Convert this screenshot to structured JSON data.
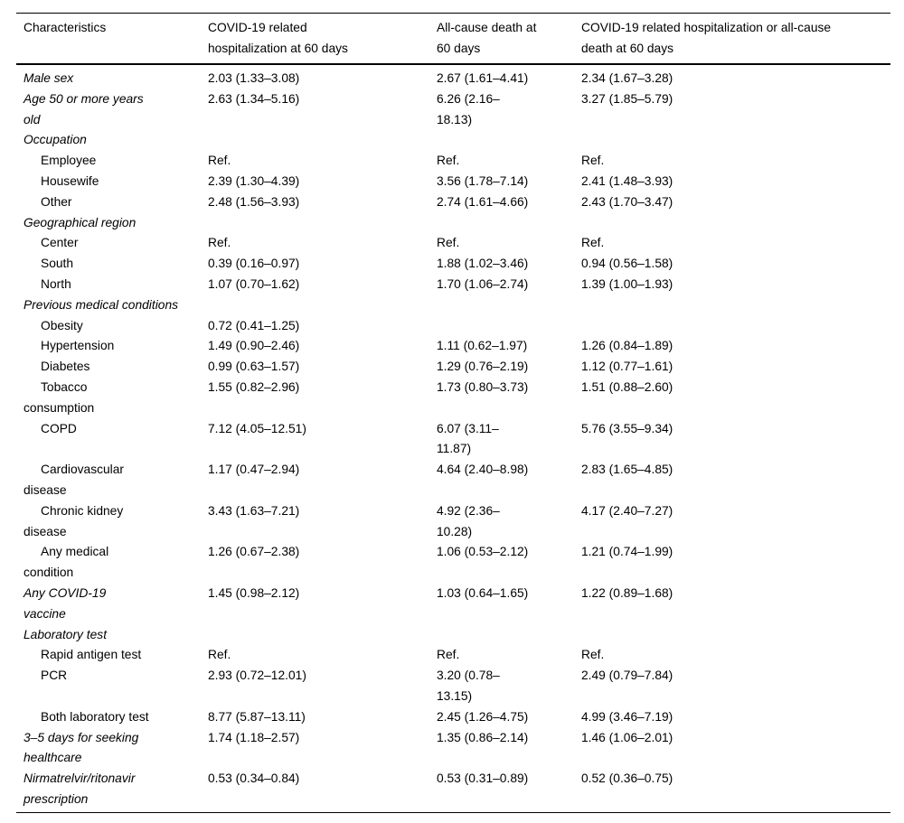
{
  "colors": {
    "background": "#ffffff",
    "text": "#000000",
    "rule": "#000000"
  },
  "table": {
    "columns": [
      "Characteristics",
      "COVID-19 related\nhospitalization at 60 days",
      "All-cause death at\n60 days",
      "COVID-19 related hospitalization or all-cause\ndeath at 60 days"
    ],
    "rows": [
      {
        "label": "Male sex",
        "style": "italic",
        "values": [
          "2.03 (1.33–3.08)",
          "2.67 (1.61–4.41)",
          "2.34 (1.67–3.28)"
        ]
      },
      {
        "label": "Age 50 or more years\nold",
        "style": "italic",
        "values": [
          "2.63 (1.34–5.16)",
          "6.26 (2.16–\n18.13)",
          "3.27 (1.85–5.79)"
        ]
      },
      {
        "label": "Occupation",
        "style": "italic",
        "values": [
          "",
          "",
          ""
        ]
      },
      {
        "label": "Employee",
        "style": "sub",
        "values": [
          "Ref.",
          "Ref.",
          "Ref."
        ]
      },
      {
        "label": "Housewife",
        "style": "sub",
        "values": [
          "2.39 (1.30–4.39)",
          "3.56 (1.78–7.14)",
          "2.41 (1.48–3.93)"
        ]
      },
      {
        "label": "Other",
        "style": "sub",
        "values": [
          "2.48 (1.56–3.93)",
          "2.74 (1.61–4.66)",
          "2.43 (1.70–3.47)"
        ]
      },
      {
        "label": "Geographical region",
        "style": "italic",
        "values": [
          "",
          "",
          ""
        ]
      },
      {
        "label": "Center",
        "style": "sub",
        "values": [
          "Ref.",
          "Ref.",
          "Ref."
        ]
      },
      {
        "label": "South",
        "style": "sub",
        "values": [
          "0.39 (0.16–0.97)",
          "1.88 (1.02–3.46)",
          "0.94 (0.56–1.58)"
        ]
      },
      {
        "label": "North",
        "style": "sub",
        "values": [
          "1.07 (0.70–1.62)",
          "1.70 (1.06–2.74)",
          "1.39 (1.00–1.93)"
        ]
      },
      {
        "label": "Previous medical conditions",
        "style": "italic",
        "values": [
          "",
          "",
          ""
        ]
      },
      {
        "label": "Obesity",
        "style": "sub",
        "values": [
          "0.72 (0.41–1.25)",
          "",
          ""
        ]
      },
      {
        "label": "Hypertension",
        "style": "sub",
        "values": [
          "1.49 (0.90–2.46)",
          "1.11 (0.62–1.97)",
          "1.26 (0.84–1.89)"
        ]
      },
      {
        "label": "Diabetes",
        "style": "sub",
        "values": [
          "0.99 (0.63–1.57)",
          "1.29 (0.76–2.19)",
          "1.12 (0.77–1.61)"
        ]
      },
      {
        "label": "Tobacco\nconsumption",
        "style": "sub",
        "values": [
          "1.55 (0.82–2.96)",
          "1.73 (0.80–3.73)",
          "1.51 (0.88–2.60)"
        ]
      },
      {
        "label": "COPD",
        "style": "sub",
        "values": [
          "7.12 (4.05–12.51)",
          "6.07 (3.11–\n11.87)",
          "5.76 (3.55–9.34)"
        ]
      },
      {
        "label": "Cardiovascular\ndisease",
        "style": "sub",
        "values": [
          "1.17 (0.47–2.94)",
          "4.64 (2.40–8.98)",
          "2.83 (1.65–4.85)"
        ]
      },
      {
        "label": "Chronic kidney\ndisease",
        "style": "sub",
        "values": [
          "3.43 (1.63–7.21)",
          "4.92 (2.36–\n10.28)",
          "4.17 (2.40–7.27)"
        ]
      },
      {
        "label": "Any medical\ncondition",
        "style": "sub",
        "values": [
          "1.26 (0.67–2.38)",
          "1.06 (0.53–2.12)",
          "1.21 (0.74–1.99)"
        ]
      },
      {
        "label": "Any COVID-19\nvaccine",
        "style": "italic",
        "values": [
          "1.45 (0.98–2.12)",
          "1.03 (0.64–1.65)",
          "1.22 (0.89–1.68)"
        ]
      },
      {
        "label": "Laboratory test",
        "style": "italic",
        "values": [
          "",
          "",
          ""
        ]
      },
      {
        "label": "Rapid antigen test",
        "style": "sub",
        "values": [
          "Ref.",
          "Ref.",
          "Ref."
        ]
      },
      {
        "label": "PCR",
        "style": "sub",
        "values": [
          "2.93 (0.72–12.01)",
          "3.20 (0.78–\n13.15)",
          "2.49 (0.79–7.84)"
        ]
      },
      {
        "label": "Both laboratory test",
        "style": "sub",
        "values": [
          "8.77 (5.87–13.11)",
          "2.45 (1.26–4.75)",
          "4.99 (3.46–7.19)"
        ]
      },
      {
        "label": "3–5 days for seeking\nhealthcare",
        "style": "italic",
        "values": [
          "1.74 (1.18–2.57)",
          "1.35 (0.86–2.14)",
          "1.46 (1.06–2.01)"
        ]
      },
      {
        "label": "Nirmatrelvir/ritonavir\nprescription",
        "style": "italic",
        "values": [
          "0.53 (0.34–0.84)",
          "0.53 (0.31–0.89)",
          "0.52 (0.36–0.75)"
        ]
      }
    ]
  }
}
